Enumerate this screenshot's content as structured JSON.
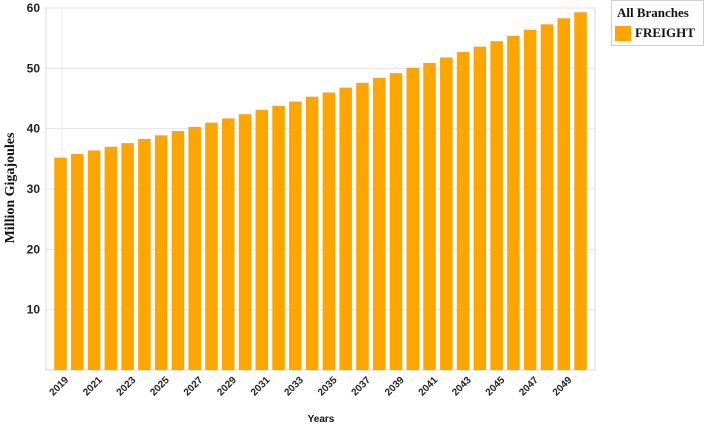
{
  "legend": {
    "title": "All Branches",
    "items": [
      {
        "label": "FREIGHT",
        "color": "#FFA500"
      }
    ]
  },
  "chart_data": {
    "type": "bar",
    "xlabel": "Years",
    "ylabel": "Million Gigajoules",
    "ylim": [
      0,
      60
    ],
    "yticks": [
      10,
      20,
      30,
      40,
      50,
      60
    ],
    "grid": true,
    "legend_position": "top-right",
    "bar_color": "#FFA500",
    "categories": [
      "2019",
      "2020",
      "2021",
      "2022",
      "2023",
      "2024",
      "2025",
      "2026",
      "2027",
      "2028",
      "2029",
      "2030",
      "2031",
      "2032",
      "2033",
      "2034",
      "2035",
      "2036",
      "2037",
      "2038",
      "2039",
      "2040",
      "2041",
      "2042",
      "2043",
      "2044",
      "2045",
      "2046",
      "2047",
      "2048",
      "2049",
      "2050"
    ],
    "x_tick_labels": [
      "2019",
      "2021",
      "2023",
      "2025",
      "2027",
      "2029",
      "2031",
      "2033",
      "2035",
      "2037",
      "2039",
      "2041",
      "2043",
      "2045",
      "2047",
      "2049"
    ],
    "series": [
      {
        "name": "FREIGHT",
        "values": [
          35.2,
          35.8,
          36.4,
          37.0,
          37.6,
          38.3,
          38.9,
          39.6,
          40.3,
          41.0,
          41.7,
          42.4,
          43.1,
          43.8,
          44.5,
          45.3,
          46.0,
          46.8,
          47.6,
          48.4,
          49.2,
          50.1,
          50.9,
          51.8,
          52.7,
          53.6,
          54.5,
          55.4,
          56.4,
          57.3,
          58.3,
          59.3
        ]
      }
    ]
  }
}
